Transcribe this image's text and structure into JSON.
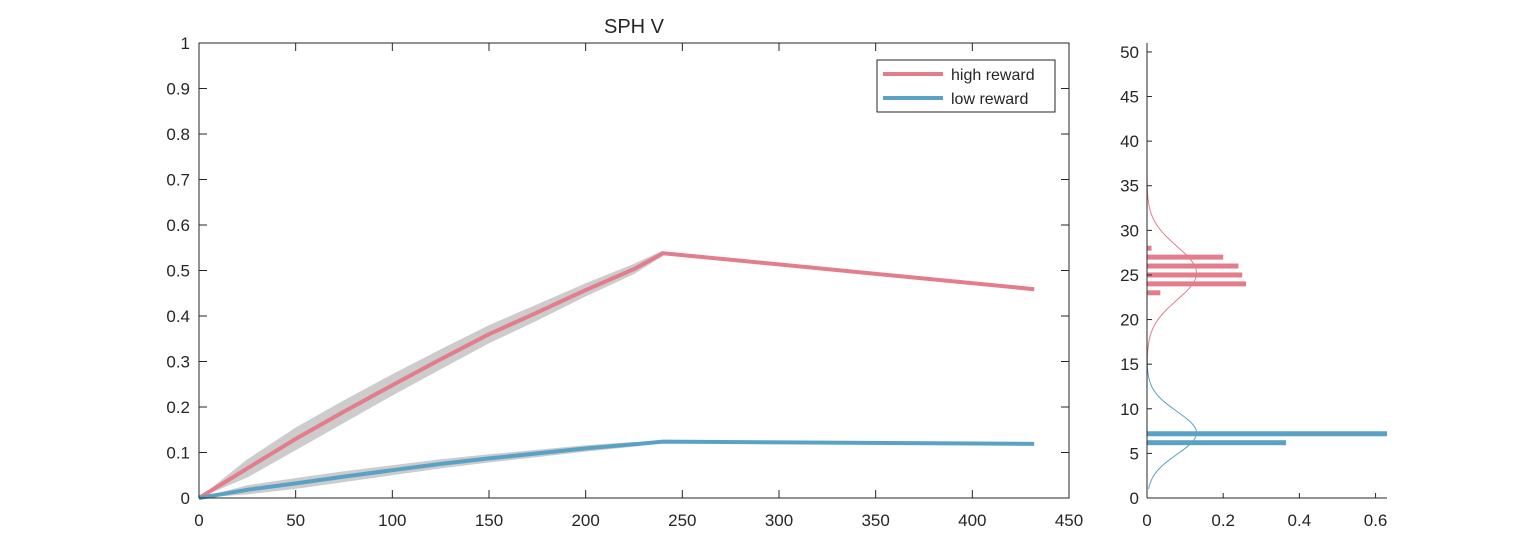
{
  "chart_data": [
    {
      "type": "line",
      "title": "SPH  V",
      "xlabel": "",
      "ylabel": "",
      "xlim": [
        0,
        450
      ],
      "ylim": [
        0,
        1
      ],
      "xticks": [
        0,
        50,
        100,
        150,
        200,
        250,
        300,
        350,
        400,
        450
      ],
      "yticks": [
        0,
        0.1,
        0.2,
        0.3,
        0.4,
        0.5,
        0.6,
        0.7,
        0.8,
        0.9,
        1
      ],
      "ytick_labels": [
        "0",
        "0.1",
        "0.2",
        "0.3",
        "0.4",
        "0.5",
        "0.6",
        "0.7",
        "0.8",
        "0.9",
        "1"
      ],
      "grid": false,
      "legend": {
        "placement": "top-right",
        "entries": [
          "high reward",
          "low reward"
        ]
      },
      "band_color": "#cccccc",
      "series": [
        {
          "name": "high reward",
          "color": "#e37c8b",
          "x": [
            0,
            25,
            50,
            75,
            100,
            125,
            150,
            175,
            200,
            225,
            240,
            432
          ],
          "y": [
            0,
            0.065,
            0.13,
            0.19,
            0.248,
            0.305,
            0.36,
            0.408,
            0.457,
            0.503,
            0.538,
            0.459
          ],
          "band": {
            "x": [
              0,
              25,
              50,
              75,
              100,
              125,
              150,
              175,
              200,
              225,
              240
            ],
            "lower": [
              0,
              0.045,
              0.105,
              0.165,
              0.225,
              0.283,
              0.34,
              0.39,
              0.443,
              0.492,
              0.532
            ],
            "upper": [
              0,
              0.085,
              0.155,
              0.215,
              0.272,
              0.327,
              0.38,
              0.426,
              0.472,
              0.515,
              0.544
            ]
          }
        },
        {
          "name": "low reward",
          "color": "#5aa2c5",
          "x": [
            0,
            25,
            50,
            75,
            100,
            125,
            150,
            175,
            200,
            225,
            240,
            432
          ],
          "y": [
            0,
            0.018,
            0.032,
            0.047,
            0.061,
            0.075,
            0.087,
            0.098,
            0.109,
            0.118,
            0.124,
            0.119
          ],
          "band": {
            "x": [
              0,
              25,
              50,
              75,
              100,
              125,
              150,
              175,
              200,
              225,
              240
            ],
            "lower": [
              0,
              0.008,
              0.02,
              0.035,
              0.05,
              0.065,
              0.078,
              0.09,
              0.102,
              0.113,
              0.121
            ],
            "upper": [
              0,
              0.028,
              0.044,
              0.059,
              0.072,
              0.085,
              0.096,
              0.106,
              0.116,
              0.123,
              0.127
            ]
          }
        }
      ]
    },
    {
      "type": "bar",
      "orientation": "horizontal",
      "title": "",
      "xlabel": "",
      "ylabel": "",
      "xlim": [
        0,
        0.63
      ],
      "ylim": [
        0,
        51
      ],
      "xticks": [
        0,
        0.2,
        0.4,
        0.6
      ],
      "xtick_labels": [
        "0",
        "0.2",
        "0.4",
        "0.6"
      ],
      "yticks": [
        0,
        5,
        10,
        15,
        20,
        25,
        30,
        35,
        40,
        45,
        50
      ],
      "grid": false,
      "series": [
        {
          "name": "high reward",
          "color": "#e37c8b",
          "bars": [
            {
              "y": 23,
              "value": 0.035
            },
            {
              "y": 24,
              "value": 0.26
            },
            {
              "y": 25,
              "value": 0.25
            },
            {
              "y": 26,
              "value": 0.24
            },
            {
              "y": 27,
              "value": 0.2
            },
            {
              "y": 28,
              "value": 0.012
            }
          ],
          "fit_curve": {
            "type": "normal",
            "mean": 25.2,
            "sd": 3.0,
            "peak": 0.13,
            "y_range": [
              1,
              50
            ]
          }
        },
        {
          "name": "low reward",
          "color": "#5aa2c5",
          "bars": [
            {
              "y": 6.2,
              "value": 0.365
            },
            {
              "y": 7.2,
              "value": 0.63
            }
          ],
          "fit_curve": {
            "type": "normal",
            "mean": 7.3,
            "sd": 2.4,
            "peak": 0.13,
            "y_range": [
              1,
              50
            ]
          }
        }
      ]
    }
  ]
}
